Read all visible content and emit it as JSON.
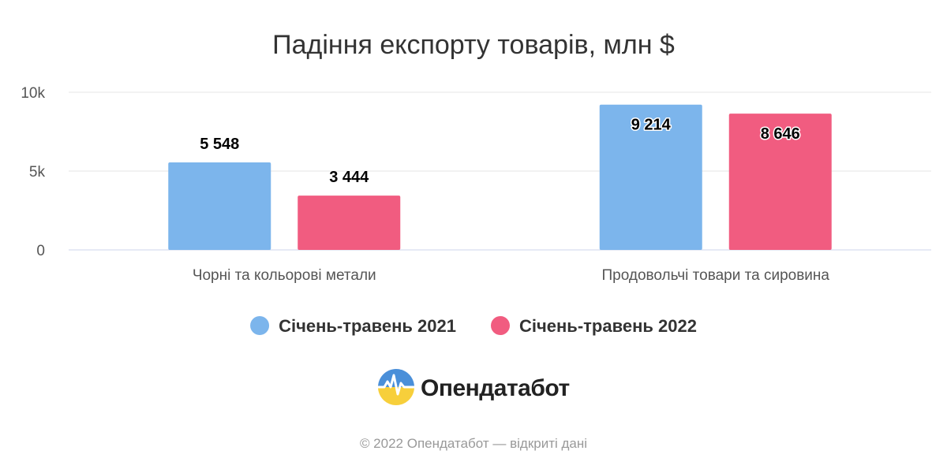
{
  "chart_data": {
    "type": "bar",
    "title": "Падіння експорту товарів, млн $",
    "categories": [
      "Чорні та кольорові метали",
      "Продовольчі товари та сировина"
    ],
    "series": [
      {
        "name": "Січень-травень 2021",
        "color": "#7cb5ec",
        "values": [
          5548,
          9214
        ],
        "labels": [
          "5 548",
          "9 214"
        ]
      },
      {
        "name": "Січень-травень 2022",
        "color": "#f15c80",
        "values": [
          3444,
          8646
        ],
        "labels": [
          "3 444",
          "8 646"
        ]
      }
    ],
    "ylim": [
      0,
      10000
    ],
    "yticks": [
      {
        "value": 0,
        "label": "0"
      },
      {
        "value": 5000,
        "label": "5k"
      },
      {
        "value": 10000,
        "label": "10k"
      }
    ],
    "grid": true,
    "legend_position": "bottom-center",
    "xlabel": "",
    "ylabel": ""
  },
  "brand": {
    "name": "Опендатабот",
    "logo_icon": "opendatabot-logo-icon"
  },
  "credits": "© 2022 Опендатабот — відкриті дані"
}
